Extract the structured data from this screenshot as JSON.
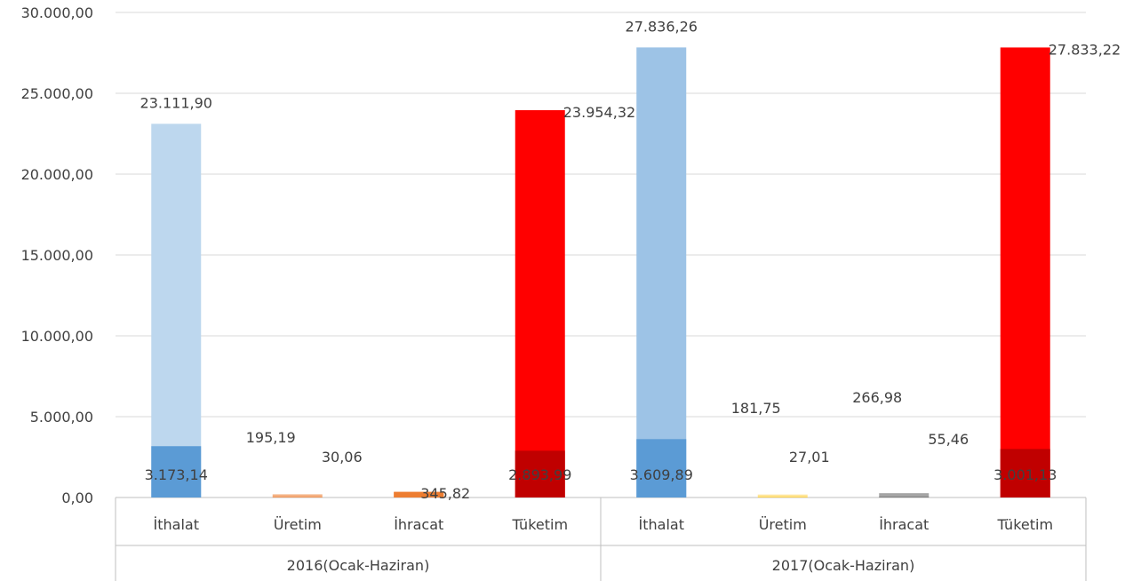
{
  "chart_data": {
    "type": "bar",
    "title": "",
    "xlabel": "",
    "ylabel": "",
    "ylim": [
      0,
      30000
    ],
    "yticks": [
      {
        "value": 0,
        "label": "0,00"
      },
      {
        "value": 5000,
        "label": "5.000,00"
      },
      {
        "value": 10000,
        "label": "10.000,00"
      },
      {
        "value": 15000,
        "label": "15.000,00"
      },
      {
        "value": 20000,
        "label": "20.000,00"
      },
      {
        "value": 25000,
        "label": "25.000,00"
      },
      {
        "value": 30000,
        "label": "30.000,00"
      }
    ],
    "grid": true,
    "legend": "none",
    "groups": [
      {
        "label": "2016(Ocak-Haziran)",
        "categories": [
          {
            "label": "İthalat",
            "total": 23111.9,
            "total_label": "23.111,90",
            "inner": 3173.14,
            "inner_label": "3.173,14",
            "color_total": "#bdd7ee",
            "color_inner": "#5b9bd5"
          },
          {
            "label": "Üretim",
            "total": 195.19,
            "total_label": "195,19",
            "inner": 30.06,
            "inner_label": "30,06",
            "color_total": "#f4b183",
            "color_inner": "#ed7d31"
          },
          {
            "label": "İhracat",
            "total": 345.82,
            "total_label": "345,82",
            "inner": 345.82,
            "inner_label": "",
            "color_total": "#ed7d31",
            "color_inner": "#ed7d31"
          },
          {
            "label": "Tüketim",
            "total": 23954.32,
            "total_label": "23.954,32",
            "inner": 2893.99,
            "inner_label": "2.893,99",
            "color_total": "#ff0000",
            "color_inner": "#c00000"
          }
        ]
      },
      {
        "label": "2017(Ocak-Haziran)",
        "categories": [
          {
            "label": "İthalat",
            "total": 27836.26,
            "total_label": "27.836,26",
            "inner": 3609.89,
            "inner_label": "3.609,89",
            "color_total": "#9dc3e6",
            "color_inner": "#5b9bd5"
          },
          {
            "label": "Üretim",
            "total": 181.75,
            "total_label": "181,75",
            "inner": 27.01,
            "inner_label": "27,01",
            "color_total": "#ffe699",
            "color_inner": "#ffc000"
          },
          {
            "label": "İhracat",
            "total": 266.98,
            "total_label": "266,98",
            "inner": 55.46,
            "inner_label": "55,46",
            "color_total": "#a5a5a5",
            "color_inner": "#7f7f7f"
          },
          {
            "label": "Tüketim",
            "total": 27833.22,
            "total_label": "27.833,22",
            "inner": 3001.13,
            "inner_label": "3.001,13",
            "color_total": "#ff0000",
            "color_inner": "#c00000"
          }
        ]
      }
    ]
  }
}
